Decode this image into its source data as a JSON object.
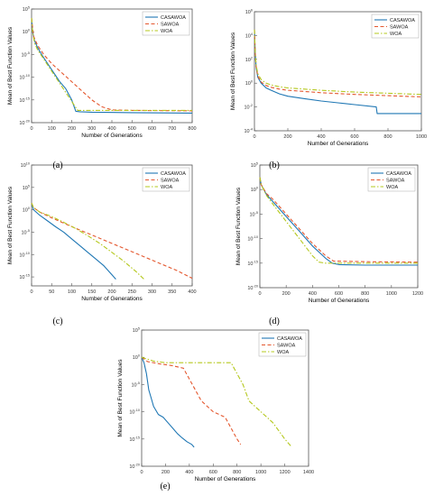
{
  "figure": {
    "panel_labels": [
      "(a)",
      "(b)",
      "(c)",
      "(d)",
      "(e)"
    ]
  },
  "colors": {
    "CASAWOA": "#1f77b4",
    "SAWOA": "#e4572e",
    "WOA": "#b5c81e"
  },
  "chart_data": [
    {
      "type": "line",
      "panel": "(a)",
      "xlabel": "Number of Generations",
      "ylabel": "Mean of Best Function Values",
      "xlim": [
        0,
        800
      ],
      "xticks": [
        0,
        100,
        200,
        300,
        400,
        500,
        600,
        700,
        800
      ],
      "ylog": true,
      "ylim_exp": [
        -20,
        5
      ],
      "ytick_exps": [
        -20,
        -15,
        -10,
        -5,
        0,
        5
      ],
      "legend": "top-right",
      "series": [
        {
          "name": "CASAWOA",
          "style": "solid",
          "x": [
            0,
            5,
            15,
            30,
            50,
            80,
            110,
            140,
            170,
            200,
            220,
            240,
            300,
            500,
            800
          ],
          "y_exp": [
            3,
            0,
            -2,
            -3.5,
            -5,
            -7,
            -9,
            -11,
            -12.5,
            -15,
            -17.5,
            -17.6,
            -17.7,
            -17.8,
            -17.9
          ]
        },
        {
          "name": "SAWOA",
          "style": "dashed",
          "x": [
            0,
            10,
            30,
            60,
            100,
            150,
            200,
            250,
            300,
            350,
            400,
            500,
            800
          ],
          "y_exp": [
            3,
            -1,
            -3,
            -5,
            -7,
            -9,
            -11,
            -13,
            -15,
            -16.5,
            -17.2,
            -17.3,
            -17.4
          ]
        },
        {
          "name": "WOA",
          "style": "dashdot",
          "x": [
            0,
            5,
            15,
            30,
            60,
            90,
            120,
            150,
            180,
            210,
            230,
            300,
            500,
            800
          ],
          "y_exp": [
            3,
            0,
            -2.5,
            -4,
            -6,
            -8,
            -10,
            -12,
            -14,
            -16,
            -17.3,
            -17.3,
            -17.3,
            -17.3
          ]
        }
      ]
    },
    {
      "type": "line",
      "panel": "(b)",
      "xlabel": "Number of Generations",
      "ylabel": "Mean of Best Function Values",
      "xlim": [
        0,
        1000
      ],
      "xticks": [
        0,
        200,
        400,
        600,
        800,
        1000
      ],
      "ylog": true,
      "ylim_exp": [
        -4,
        6
      ],
      "ytick_exps": [
        -4,
        -2,
        0,
        2,
        4,
        6
      ],
      "legend": "top-right",
      "series": [
        {
          "name": "CASAWOA",
          "style": "solid",
          "x": [
            0,
            5,
            10,
            20,
            40,
            70,
            100,
            150,
            200,
            300,
            400,
            500,
            600,
            730,
            735,
            1000
          ],
          "y_exp": [
            4.5,
            2.5,
            1.3,
            0.5,
            0,
            -0.4,
            -0.6,
            -0.9,
            -1.1,
            -1.3,
            -1.5,
            -1.65,
            -1.8,
            -2,
            -2.55,
            -2.55
          ]
        },
        {
          "name": "SAWOA",
          "style": "dashed",
          "x": [
            0,
            5,
            10,
            20,
            40,
            70,
            100,
            150,
            200,
            400,
            600,
            800,
            1000
          ],
          "y_exp": [
            4.5,
            2.5,
            1.4,
            0.6,
            0.1,
            -0.2,
            -0.35,
            -0.5,
            -0.6,
            -0.8,
            -0.95,
            -1.05,
            -1.15
          ]
        },
        {
          "name": "WOA",
          "style": "dashdot",
          "x": [
            0,
            5,
            10,
            20,
            40,
            70,
            100,
            150,
            200,
            400,
            600,
            800,
            1000
          ],
          "y_exp": [
            4.5,
            2.5,
            1.5,
            0.8,
            0.3,
            0,
            -0.15,
            -0.3,
            -0.4,
            -0.6,
            -0.75,
            -0.85,
            -0.95
          ]
        }
      ]
    },
    {
      "type": "line",
      "panel": "(c)",
      "xlabel": "Number of Generations",
      "ylabel": "Mean of Best Function Values",
      "xlim": [
        0,
        400
      ],
      "xticks": [
        0,
        50,
        100,
        150,
        200,
        250,
        300,
        350,
        400
      ],
      "ylog": true,
      "ylim_exp": [
        -17,
        10
      ],
      "ytick_exps": [
        -15,
        -10,
        -5,
        0,
        5,
        10
      ],
      "legend": "top-right",
      "series": [
        {
          "name": "CASAWOA",
          "style": "solid",
          "x": [
            0,
            5,
            20,
            40,
            60,
            80,
            100,
            120,
            140,
            160,
            180,
            200,
            210
          ],
          "y_exp": [
            1.5,
            0,
            -1.2,
            -2.5,
            -3.8,
            -5,
            -6.5,
            -8,
            -9.5,
            -11,
            -12.5,
            -14.5,
            -15.5
          ]
        },
        {
          "name": "SAWOA",
          "style": "dashed",
          "x": [
            0,
            5,
            20,
            50,
            80,
            120,
            160,
            200,
            240,
            280,
            320,
            360,
            400
          ],
          "y_exp": [
            1.5,
            0.5,
            -0.5,
            -1.8,
            -3,
            -4.5,
            -6,
            -7.5,
            -9,
            -10.5,
            -12,
            -13.5,
            -15.3
          ]
        },
        {
          "name": "WOA",
          "style": "dashdot",
          "x": [
            0,
            5,
            20,
            50,
            80,
            110,
            140,
            170,
            200,
            230,
            260,
            280
          ],
          "y_exp": [
            1.5,
            0.5,
            -0.5,
            -1.5,
            -2.8,
            -4.2,
            -5.8,
            -7.5,
            -9.5,
            -11.5,
            -13.8,
            -15.5
          ]
        }
      ]
    },
    {
      "type": "line",
      "panel": "(d)",
      "xlabel": "Number of Generations",
      "ylabel": "Mean of Best Function Values",
      "xlim": [
        0,
        1200
      ],
      "xticks": [
        0,
        200,
        400,
        600,
        800,
        1000,
        1200
      ],
      "ylog": true,
      "ylim_exp": [
        -20,
        5
      ],
      "ytick_exps": [
        -20,
        -15,
        -10,
        -5,
        0,
        5
      ],
      "legend": "top-right",
      "series": [
        {
          "name": "CASAWOA",
          "style": "solid",
          "x": [
            0,
            10,
            50,
            100,
            200,
            300,
            400,
            500,
            550,
            600,
            800,
            1200
          ],
          "y_exp": [
            2.5,
            1,
            -1,
            -2.5,
            -5.5,
            -8.5,
            -11.5,
            -14,
            -15,
            -15.3,
            -15.4,
            -15.4
          ]
        },
        {
          "name": "SAWOA",
          "style": "dashed",
          "x": [
            0,
            10,
            50,
            100,
            200,
            300,
            400,
            500,
            560,
            600,
            800,
            1200
          ],
          "y_exp": [
            2.5,
            1,
            -0.8,
            -2,
            -5,
            -8,
            -11,
            -13.5,
            -14.6,
            -14.6,
            -14.7,
            -14.8
          ]
        },
        {
          "name": "WOA",
          "style": "dashdot",
          "x": [
            0,
            10,
            50,
            100,
            200,
            300,
            400,
            450,
            500,
            800,
            1200
          ],
          "y_exp": [
            2.5,
            1,
            -1.2,
            -3,
            -6.5,
            -10,
            -13.5,
            -14.8,
            -15,
            -15,
            -15
          ]
        }
      ]
    },
    {
      "type": "line",
      "panel": "(e)",
      "xlabel": "Number of Generations",
      "ylabel": "Mean of Best Function Values",
      "xlim": [
        0,
        1400
      ],
      "xticks": [
        0,
        200,
        400,
        600,
        800,
        1000,
        1200,
        1400
      ],
      "ylog": true,
      "ylim_exp": [
        -20,
        5
      ],
      "ytick_exps": [
        -20,
        -15,
        -10,
        -5,
        0,
        5
      ],
      "legend": "top-right",
      "series": [
        {
          "name": "CASAWOA",
          "style": "solid",
          "x": [
            0,
            20,
            40,
            60,
            80,
            100,
            140,
            180,
            220,
            260,
            300,
            340,
            380,
            420,
            440
          ],
          "y_exp": [
            0,
            -1,
            -3,
            -6,
            -7.5,
            -9,
            -10.5,
            -11,
            -12,
            -13,
            -14,
            -14.8,
            -15.5,
            -16,
            -16.5
          ]
        },
        {
          "name": "SAWOA",
          "style": "dashed",
          "x": [
            0,
            50,
            150,
            250,
            350,
            400,
            450,
            500,
            550,
            600,
            700,
            750,
            800,
            830
          ],
          "y_exp": [
            0,
            -0.8,
            -1.2,
            -1.5,
            -2,
            -4,
            -6,
            -8,
            -9,
            -10,
            -11,
            -13,
            -15,
            -16
          ]
        },
        {
          "name": "WOA",
          "style": "dashdot",
          "x": [
            0,
            100,
            200,
            400,
            600,
            750,
            800,
            850,
            900,
            1000,
            1050,
            1100,
            1150,
            1200,
            1260
          ],
          "y_exp": [
            0,
            -0.7,
            -1,
            -1,
            -1,
            -1,
            -3,
            -5,
            -8,
            -10,
            -11,
            -12,
            -13.5,
            -15,
            -16.5
          ]
        }
      ]
    }
  ]
}
